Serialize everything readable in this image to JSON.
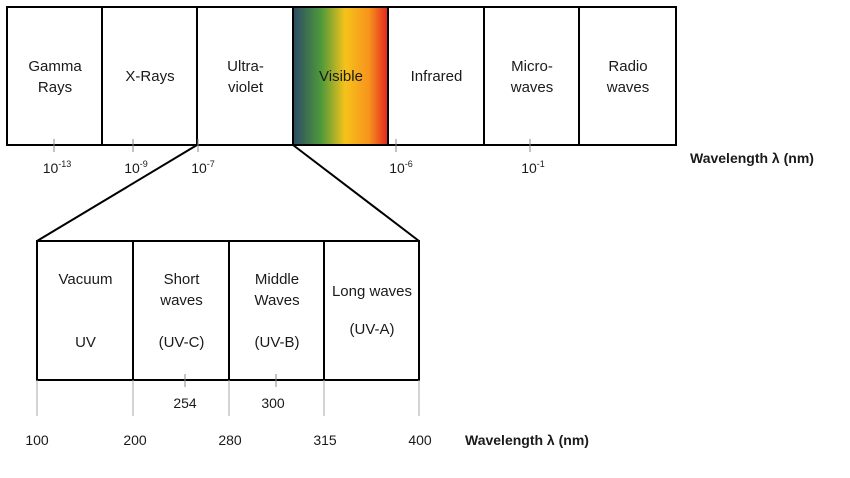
{
  "spectrum": {
    "bands": [
      {
        "line1": "Gamma",
        "line2": "Rays"
      },
      {
        "line1": "X-Rays",
        "line2": ""
      },
      {
        "line1": "Ultra-",
        "line2": "violet"
      },
      {
        "line1": "Visible",
        "line2": ""
      },
      {
        "line1": "Infrared",
        "line2": ""
      },
      {
        "line1": "Micro-",
        "line2": "waves"
      },
      {
        "line1": "Radio",
        "line2": "waves"
      }
    ],
    "ticks": [
      {
        "base": "10",
        "exp": "-13"
      },
      {
        "base": "10",
        "exp": "-9"
      },
      {
        "base": "10",
        "exp": "-7"
      },
      {
        "base": "10",
        "exp": "-6"
      },
      {
        "base": "10",
        "exp": "-1"
      }
    ],
    "axis_title": "Wavelength λ (nm)",
    "visible_gradient": [
      "#2b4a66",
      "#4f9a3a",
      "#f6c21a",
      "#f7941d",
      "#e52420"
    ]
  },
  "uv": {
    "bands": [
      {
        "line1": "Vacuum",
        "line2": "",
        "line3": "UV"
      },
      {
        "line1": "Short",
        "line2": "waves",
        "line3": "(UV-C)"
      },
      {
        "line1": "Middle",
        "line2": "Waves",
        "line3": "(UV-B)"
      },
      {
        "line1": "Long waves",
        "line2": "",
        "line3": "(UV-A)"
      }
    ],
    "inner_ticks": [
      "254",
      "300"
    ],
    "boundary_ticks": [
      "100",
      "200",
      "280",
      "315",
      "400"
    ],
    "axis_title": "Wavelength λ (nm)"
  }
}
